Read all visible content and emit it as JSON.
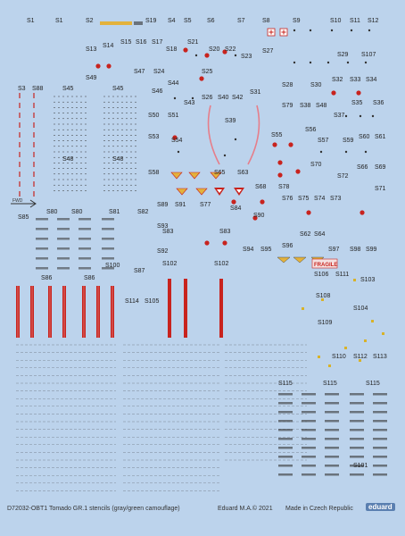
{
  "labels": [
    "S1",
    "S1",
    "S2",
    "S19",
    "S4",
    "S5",
    "S6",
    "S7",
    "S8",
    "S9",
    "S10",
    "S11",
    "S12",
    "S13",
    "S14",
    "S15",
    "S16",
    "S17",
    "S18",
    "S20",
    "S22",
    "S21",
    "S27",
    "S23",
    "S29",
    "S107",
    "S49",
    "S47",
    "S24",
    "S25",
    "S44",
    "S46",
    "S3",
    "S88",
    "S45",
    "S45",
    "S28",
    "S30",
    "S32",
    "S33",
    "S34",
    "S43",
    "S26",
    "S40",
    "S42",
    "S31",
    "S79",
    "S38",
    "S48",
    "S35",
    "S36",
    "S50",
    "S51",
    "S39",
    "S37",
    "S53",
    "S54",
    "S56",
    "S55",
    "S57",
    "S59",
    "S60",
    "S61",
    "S48",
    "S48",
    "S70",
    "S72",
    "S66",
    "S69",
    "S58",
    "S65",
    "S63",
    "S68",
    "S78",
    "S71",
    "S76",
    "S75",
    "S74",
    "S73",
    "S89",
    "S91",
    "S77",
    "S84",
    "S80",
    "S80",
    "S81",
    "S82",
    "S90",
    "S85",
    "S83",
    "S83",
    "S62",
    "S64",
    "S93",
    "S92",
    "S94",
    "S95",
    "S96",
    "S97",
    "S98",
    "S99",
    "S102",
    "S102",
    "S100",
    "S87",
    "S86",
    "S86",
    "S106",
    "S111",
    "S103",
    "S108",
    "S104",
    "S114",
    "S105",
    "S109",
    "S110",
    "S112",
    "S113",
    "S115",
    "S115",
    "S115",
    "S101"
  ],
  "fwd_label": "FWD",
  "fragile_label": "FRAGILE",
  "footer": {
    "code": "D72032-OBT1 Tomado GR.1 stencils (gray/green camouflage)",
    "copyright": "Eduard M.A.© 2021",
    "made": "Made in Czech Republic",
    "logo": "eduard"
  },
  "colors": {
    "background": "#bcd3ec",
    "stencil_red": "#c8231e",
    "stencil_dark": "#333333"
  }
}
